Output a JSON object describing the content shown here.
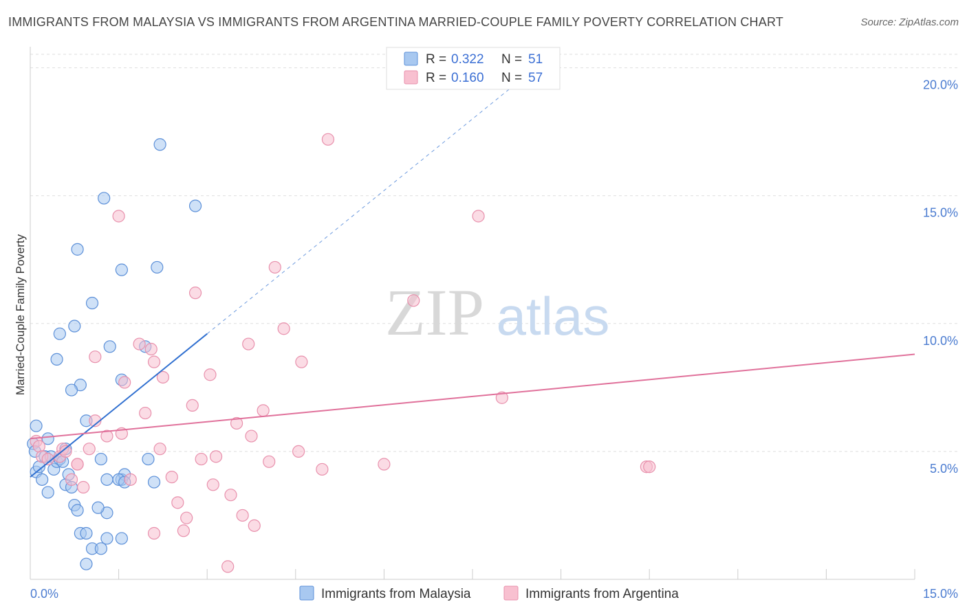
{
  "title": "IMMIGRANTS FROM MALAYSIA VS IMMIGRANTS FROM ARGENTINA MARRIED-COUPLE FAMILY POVERTY CORRELATION CHART",
  "source": "Source: ZipAtlas.com",
  "watermark": {
    "zip": "ZIP",
    "atlas": "atlas"
  },
  "colors": {
    "malaysia_fill": "#a8c8f0",
    "malaysia_stroke": "#5b8fd8",
    "malaysia_line": "#2f6fd0",
    "argentina_fill": "#f8c0d0",
    "argentina_stroke": "#e890ac",
    "argentina_line": "#e0709a",
    "axis_text": "#4a7bd0",
    "grid": "#dddddd"
  },
  "chart_data": {
    "type": "scatter",
    "title": "IMMIGRANTS FROM MALAYSIA VS IMMIGRANTS FROM ARGENTINA MARRIED-COUPLE FAMILY POVERTY CORRELATION CHART",
    "xlabel": "",
    "ylabel": "Married-Couple Family Poverty",
    "xlim": [
      0,
      15
    ],
    "ylim": [
      0,
      20.5
    ],
    "x_tick_labels": [
      {
        "value": 0,
        "label": "0.0%"
      },
      {
        "value": 15,
        "label": "15.0%"
      }
    ],
    "x_minor_ticks": [
      1.5,
      3,
      4.5,
      6,
      7.5,
      9,
      10.5,
      12,
      13.5,
      15
    ],
    "y_ticks": [
      {
        "value": 5,
        "label": "5.0%"
      },
      {
        "value": 10,
        "label": "10.0%"
      },
      {
        "value": 15,
        "label": "15.0%"
      },
      {
        "value": 20,
        "label": "20.0%"
      }
    ],
    "legend": [
      {
        "name": "Immigrants from Malaysia",
        "r_label": "R = ",
        "r_value": "0.322",
        "n_label": "N = ",
        "n_value": "51"
      },
      {
        "name": "Immigrants from Argentina",
        "r_label": "R = ",
        "r_value": "0.160",
        "n_label": "N = ",
        "n_value": "57"
      }
    ],
    "series": [
      {
        "name": "Immigrants from Malaysia",
        "trend": {
          "x0": 0,
          "y0": 4.0,
          "x1": 3.0,
          "y1": 9.6,
          "dash_x1": 9.5
        },
        "points": [
          [
            0.1,
            6.0
          ],
          [
            0.05,
            5.3
          ],
          [
            0.08,
            5.0
          ],
          [
            0.1,
            4.2
          ],
          [
            0.15,
            4.4
          ],
          [
            0.2,
            3.9
          ],
          [
            0.25,
            4.8
          ],
          [
            0.3,
            5.5
          ],
          [
            0.3,
            3.4
          ],
          [
            0.35,
            4.8
          ],
          [
            0.4,
            4.3
          ],
          [
            0.45,
            4.6
          ],
          [
            0.5,
            4.7
          ],
          [
            0.55,
            4.6
          ],
          [
            0.6,
            5.1
          ],
          [
            0.6,
            3.7
          ],
          [
            0.65,
            4.1
          ],
          [
            0.7,
            3.6
          ],
          [
            0.75,
            2.9
          ],
          [
            0.8,
            2.7
          ],
          [
            0.85,
            1.8
          ],
          [
            0.95,
            1.8
          ],
          [
            1.05,
            1.2
          ],
          [
            1.2,
            1.2
          ],
          [
            1.3,
            1.6
          ],
          [
            1.55,
            1.6
          ],
          [
            0.95,
            0.6
          ],
          [
            1.3,
            2.6
          ],
          [
            1.15,
            2.8
          ],
          [
            1.2,
            4.7
          ],
          [
            1.55,
            3.9
          ],
          [
            1.6,
            4.1
          ],
          [
            1.3,
            3.9
          ],
          [
            1.5,
            3.9
          ],
          [
            1.6,
            3.8
          ],
          [
            2.0,
            4.7
          ],
          [
            2.1,
            3.8
          ],
          [
            0.5,
            9.6
          ],
          [
            0.45,
            8.6
          ],
          [
            0.75,
            9.9
          ],
          [
            1.05,
            10.8
          ],
          [
            0.85,
            7.6
          ],
          [
            0.7,
            7.4
          ],
          [
            0.95,
            6.2
          ],
          [
            1.35,
            9.1
          ],
          [
            1.55,
            7.8
          ],
          [
            1.95,
            9.1
          ],
          [
            0.8,
            12.9
          ],
          [
            1.55,
            12.1
          ],
          [
            2.15,
            12.2
          ],
          [
            1.25,
            14.9
          ],
          [
            2.8,
            14.6
          ],
          [
            2.2,
            17.0
          ]
        ]
      },
      {
        "name": "Immigrants from Argentina",
        "trend": {
          "x0": 0,
          "y0": 5.5,
          "x1": 15,
          "y1": 8.8
        },
        "points": [
          [
            0.1,
            5.4
          ],
          [
            0.15,
            5.2
          ],
          [
            0.2,
            4.8
          ],
          [
            0.3,
            4.7
          ],
          [
            0.5,
            4.8
          ],
          [
            0.55,
            5.1
          ],
          [
            0.6,
            5.0
          ],
          [
            0.7,
            3.9
          ],
          [
            0.8,
            4.5
          ],
          [
            0.9,
            3.6
          ],
          [
            1.0,
            5.1
          ],
          [
            1.1,
            6.2
          ],
          [
            1.3,
            5.6
          ],
          [
            1.55,
            5.7
          ],
          [
            1.7,
            3.9
          ],
          [
            1.95,
            6.5
          ],
          [
            2.2,
            5.1
          ],
          [
            2.4,
            4.0
          ],
          [
            2.5,
            3.0
          ],
          [
            2.6,
            1.9
          ],
          [
            2.65,
            2.4
          ],
          [
            2.75,
            6.8
          ],
          [
            2.9,
            4.7
          ],
          [
            3.1,
            3.7
          ],
          [
            3.15,
            4.8
          ],
          [
            3.4,
            3.3
          ],
          [
            3.5,
            6.1
          ],
          [
            3.6,
            2.5
          ],
          [
            3.75,
            5.6
          ],
          [
            3.8,
            2.1
          ],
          [
            3.95,
            6.6
          ],
          [
            4.05,
            4.6
          ],
          [
            3.35,
            0.5
          ],
          [
            2.1,
            1.8
          ],
          [
            3.7,
            9.2
          ],
          [
            4.3,
            9.8
          ],
          [
            4.6,
            8.5
          ],
          [
            4.55,
            5.0
          ],
          [
            4.95,
            4.3
          ],
          [
            6.0,
            4.5
          ],
          [
            3.05,
            8.0
          ],
          [
            2.25,
            7.9
          ],
          [
            2.1,
            8.5
          ],
          [
            1.85,
            9.2
          ],
          [
            1.6,
            7.7
          ],
          [
            1.1,
            8.7
          ],
          [
            0.8,
            4.5
          ],
          [
            2.8,
            11.2
          ],
          [
            4.15,
            12.2
          ],
          [
            6.5,
            10.9
          ],
          [
            1.5,
            14.2
          ],
          [
            7.6,
            14.2
          ],
          [
            5.05,
            17.2
          ],
          [
            8.0,
            7.1
          ],
          [
            10.45,
            4.4
          ],
          [
            10.5,
            4.4
          ],
          [
            2.05,
            9.0
          ]
        ]
      }
    ]
  }
}
